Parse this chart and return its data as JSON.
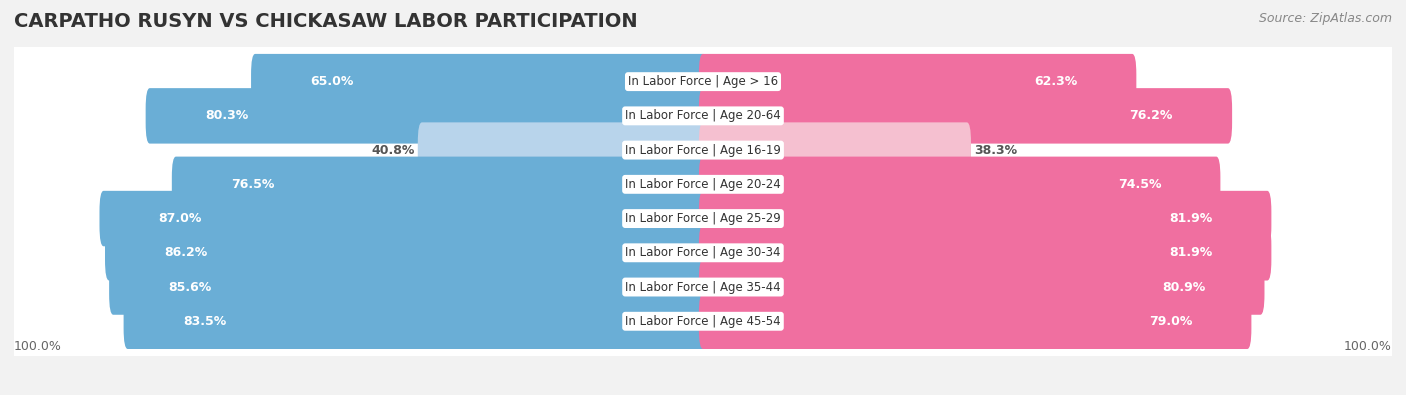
{
  "title": "CARPATHO RUSYN VS CHICKASAW LABOR PARTICIPATION",
  "source": "Source: ZipAtlas.com",
  "categories": [
    "In Labor Force | Age > 16",
    "In Labor Force | Age 20-64",
    "In Labor Force | Age 16-19",
    "In Labor Force | Age 20-24",
    "In Labor Force | Age 25-29",
    "In Labor Force | Age 30-34",
    "In Labor Force | Age 35-44",
    "In Labor Force | Age 45-54"
  ],
  "carpatho_values": [
    65.0,
    80.3,
    40.8,
    76.5,
    87.0,
    86.2,
    85.6,
    83.5
  ],
  "chickasaw_values": [
    62.3,
    76.2,
    38.3,
    74.5,
    81.9,
    81.9,
    80.9,
    79.0
  ],
  "carpatho_color": "#6aaed6",
  "carpatho_color_light": "#b8d4eb",
  "chickasaw_color": "#f06fa0",
  "chickasaw_color_light": "#f5c0d0",
  "max_value": 100.0,
  "background_color": "#f2f2f2",
  "row_bg": "#ffffff",
  "row_shadow": "#d8d8d8",
  "label_color_dark": "#555555",
  "label_color_white": "#ffffff",
  "title_fontsize": 14,
  "source_fontsize": 9,
  "value_fontsize": 9,
  "category_fontsize": 8.5,
  "legend_fontsize": 9
}
